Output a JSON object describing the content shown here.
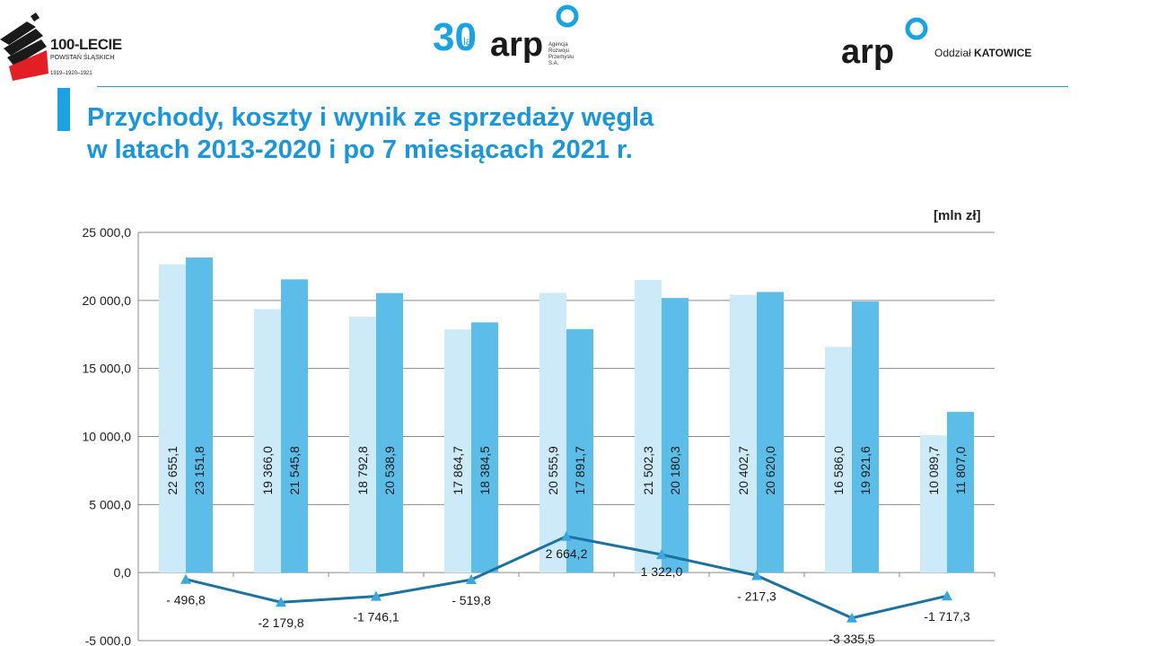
{
  "header": {
    "logo_left": {
      "line1": "100-LECIE",
      "line2": "POWSTAŃ ŚLĄSKICH",
      "line3": "1919–1920–1921"
    },
    "logo_center": {
      "badge": "30",
      "badge_sub": "lat",
      "brand": "arp",
      "sub": "Agencja\nRozwoju\nPrzemysłu\nS.A."
    },
    "logo_right": {
      "brand": "arp",
      "label_prefix": "Oddział ",
      "label_bold": "KATOWICE"
    },
    "colors": {
      "accent": "#1aa3e0",
      "title": "#1a96d9"
    }
  },
  "slide": {
    "title_line1": "Przychody, koszty i wynik ze sprzedaży węgla",
    "title_line2": "w latach 2013-2020 i po 7 miesiącach 2021 r."
  },
  "chart_data": {
    "type": "bar",
    "unit_label": "[mln zł]",
    "ylim": [
      -5000,
      25000
    ],
    "yticks": [
      -5000,
      0,
      5000,
      10000,
      15000,
      20000,
      25000
    ],
    "ytick_labels": [
      "-5 000,0",
      "0,0",
      "5 000,0",
      "10 000,0",
      "15 000,0",
      "20 000,0",
      "25 000,0"
    ],
    "grid": true,
    "series": [
      {
        "values": [
          22655.1,
          19366.0,
          18792.8,
          17864.7,
          20555.9,
          21502.3,
          20402.7,
          16586.0,
          10089.7
        ],
        "labels": [
          "22 655,1",
          "19 366,0",
          "18 792,8",
          "17 864,7",
          "20 555,9",
          "21 502,3",
          "20 402,7",
          "16 586,0",
          "10 089,7"
        ],
        "color": "#cdeaf8"
      },
      {
        "values": [
          23151.8,
          21545.8,
          20538.9,
          18384.5,
          17891.7,
          20180.3,
          20620.0,
          19921.6,
          11807.0
        ],
        "labels": [
          "23 151,8",
          "21 545,8",
          "20 538,9",
          "18 384,5",
          "17 891,7",
          "20 180,3",
          "20 620,0",
          "19 921,6",
          "11 807,0"
        ],
        "color": "#5bbde8"
      },
      {
        "type": "line",
        "values": [
          -496.8,
          -2179.8,
          -1746.1,
          -519.8,
          2664.2,
          1322.0,
          -217.3,
          -3335.5,
          -1717.3
        ],
        "labels": [
          "- 496,8",
          "-2 179,8",
          "-1 746,1",
          "- 519,8",
          "2 664,2",
          "1 322,0",
          "- 217,3",
          "-3 335,5",
          "-1 717,3"
        ],
        "color": "#1b72a0",
        "marker_color": "#3aa8dd"
      }
    ]
  }
}
